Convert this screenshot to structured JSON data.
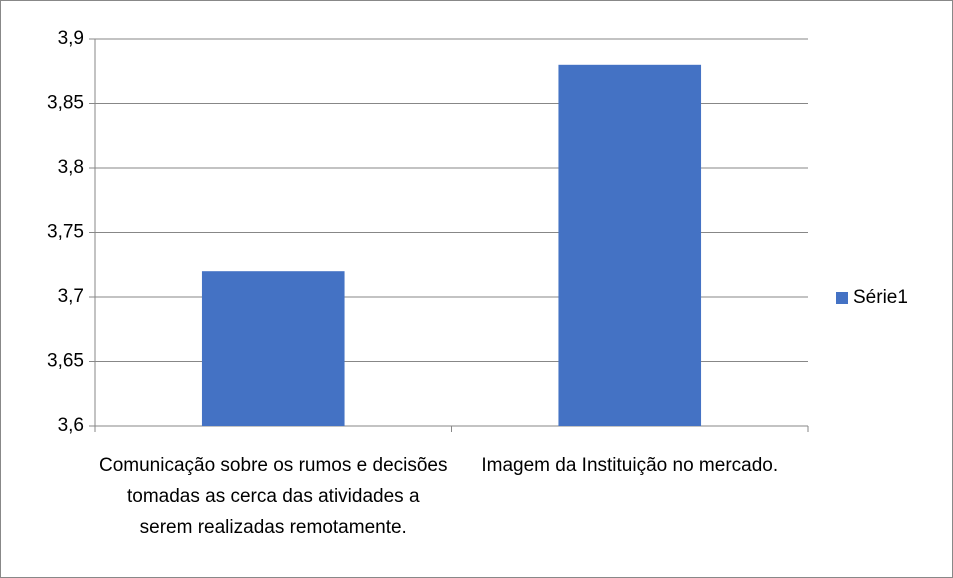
{
  "chart_data": {
    "type": "bar",
    "categories": [
      "Comunicação sobre os rumos e decisões tomadas as cerca das atividades a serem realizadas remotamente.",
      "Imagem da Instituição no mercado."
    ],
    "series": [
      {
        "name": "Série1",
        "color": "#4472c4",
        "values": [
          3.72,
          3.88
        ]
      }
    ],
    "ylim": [
      3.6,
      3.9
    ],
    "yticks": [
      {
        "value": 3.6,
        "label": "3,6"
      },
      {
        "value": 3.65,
        "label": "3,65"
      },
      {
        "value": 3.7,
        "label": "3,7"
      },
      {
        "value": 3.75,
        "label": "3,75"
      },
      {
        "value": 3.8,
        "label": "3,8"
      },
      {
        "value": 3.85,
        "label": "3,85"
      },
      {
        "value": 3.9,
        "label": "3,9"
      }
    ],
    "grid": true,
    "legend": "right"
  }
}
